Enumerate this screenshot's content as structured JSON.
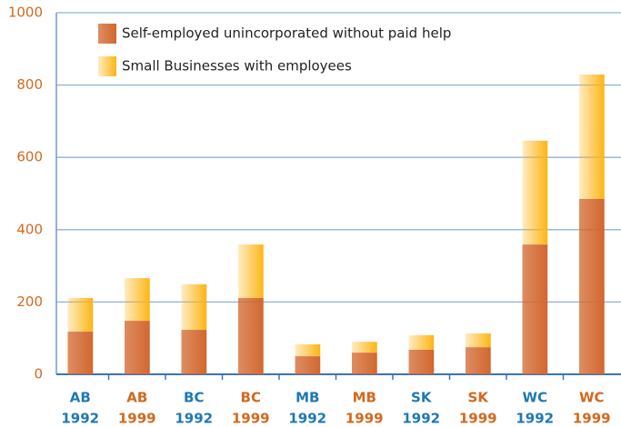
{
  "chart_data": {
    "type": "stacked_bar",
    "categories": [
      [
        "AB",
        "1992"
      ],
      [
        "AB",
        "1999"
      ],
      [
        "BC",
        "1992"
      ],
      [
        "BC",
        "1999"
      ],
      [
        "MB",
        "1992"
      ],
      [
        "MB",
        "1999"
      ],
      [
        "SK",
        "1992"
      ],
      [
        "SK",
        "1999"
      ],
      [
        "WC",
        "1992"
      ],
      [
        "WC",
        "1999"
      ]
    ],
    "category_colors": [
      "#1f78b4",
      "#d2691e",
      "#1f78b4",
      "#d2691e",
      "#1f78b4",
      "#d2691e",
      "#1f78b4",
      "#d2691e",
      "#1f78b4",
      "#d2691e"
    ],
    "series": [
      {
        "name": "Self-employed unincorporated without paid help",
        "color": "#d2672f",
        "values": [
          118,
          148,
          123,
          211,
          50,
          60,
          68,
          75,
          359,
          485
        ]
      },
      {
        "name": "Small Businesses with employees",
        "color": "#fdb515",
        "values": [
          93,
          118,
          126,
          148,
          33,
          30,
          40,
          38,
          287,
          344
        ]
      }
    ],
    "ylim": [
      0,
      1000
    ],
    "yticks": [
      0,
      200,
      400,
      600,
      800,
      1000
    ],
    "grid": true,
    "legend": "top-left"
  }
}
